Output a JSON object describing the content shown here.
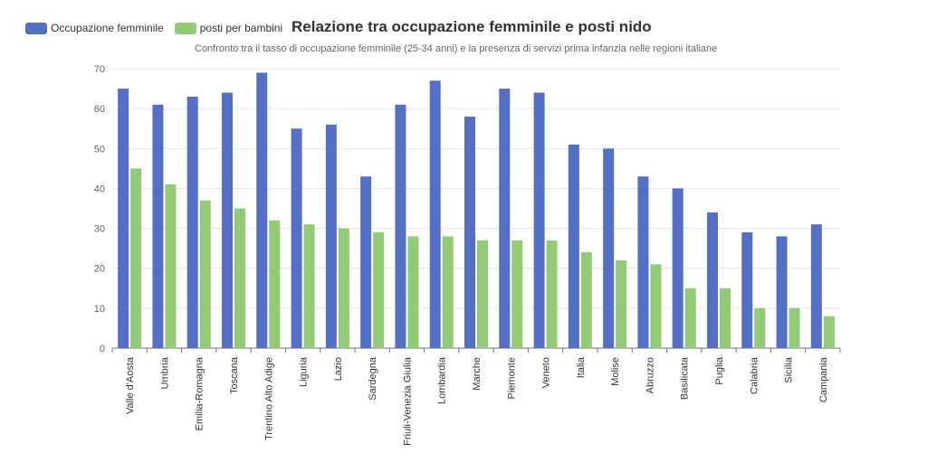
{
  "chart_data": {
    "type": "bar",
    "title": "Relazione tra occupazione femminile e posti nido",
    "subtitle": "Confronto tra il tasso di occupazione femminile (25-34 anni) e la presenza di servizi prima infanzia nelle regioni italiane",
    "categories": [
      "Valle d'Aosta",
      "Umbria",
      "Emilia-Romagna",
      "Toscana",
      "Trentino Alto Adige",
      "Liguria",
      "Lazio",
      "Sardegna",
      "Friuli-Venezia Giulia",
      "Lombardia",
      "Marche",
      "Piemonte",
      "Veneto",
      "Italia",
      "Molise",
      "Abruzzo",
      "Basilicata",
      "Puglia",
      "Calabria",
      "Sicilia",
      "Campania"
    ],
    "series": [
      {
        "name": "Occupazione femminile",
        "color": "#5470c6",
        "values": [
          65,
          61,
          63,
          64,
          69,
          55,
          56,
          43,
          61,
          67,
          58,
          65,
          64,
          51,
          50,
          43,
          40,
          34,
          29,
          28,
          31
        ]
      },
      {
        "name": "posti per bambini",
        "color": "#91cc75",
        "values": [
          45,
          41,
          37,
          35,
          32,
          31,
          30,
          29,
          28,
          28,
          27,
          27,
          27,
          24,
          22,
          21,
          15,
          15,
          10,
          10,
          8
        ]
      }
    ],
    "ylim": [
      0,
      70
    ],
    "yticks": [
      0,
      10,
      20,
      30,
      40,
      50,
      60,
      70
    ],
    "grid": true,
    "legend_position": "top-left",
    "xlabel": "",
    "ylabel": ""
  }
}
